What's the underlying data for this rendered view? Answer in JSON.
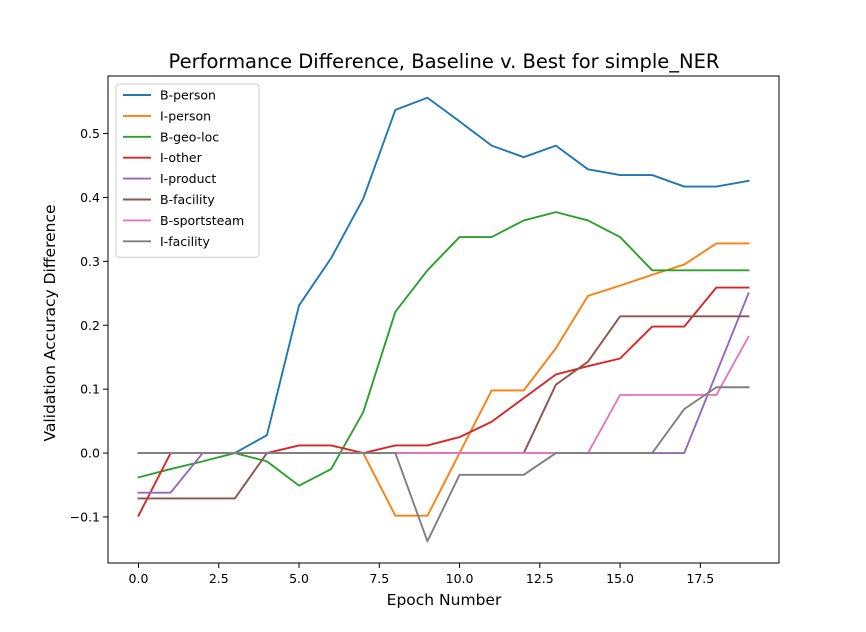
{
  "chart_data": {
    "type": "line",
    "title": "Performance Difference, Baseline v. Best for simple_NER",
    "xlabel": "Epoch Number",
    "ylabel": "Validation Accuracy Difference",
    "xlim": [
      -0.95,
      19.95
    ],
    "ylim": [
      -0.172,
      0.59
    ],
    "xticks": [
      0.0,
      2.5,
      5.0,
      7.5,
      10.0,
      12.5,
      15.0,
      17.5
    ],
    "xtick_labels": [
      "0.0",
      "2.5",
      "5.0",
      "7.5",
      "10.0",
      "12.5",
      "15.0",
      "17.5"
    ],
    "yticks": [
      -0.1,
      0.0,
      0.1,
      0.2,
      0.3,
      0.4,
      0.5
    ],
    "ytick_labels": [
      "−0.1",
      "0.0",
      "0.1",
      "0.2",
      "0.3",
      "0.4",
      "0.5"
    ],
    "grid": false,
    "legend_position": "top-left",
    "x": [
      0,
      1,
      2,
      3,
      4,
      5,
      6,
      7,
      8,
      9,
      10,
      11,
      12,
      13,
      14,
      15,
      16,
      17,
      18,
      19
    ],
    "series": [
      {
        "name": "B-person",
        "color": "#1f77b4",
        "values": [
          0.0,
          0.0,
          0.0,
          0.0,
          0.028,
          0.231,
          0.305,
          0.398,
          0.537,
          0.556,
          0.519,
          0.481,
          0.463,
          0.481,
          0.444,
          0.435,
          0.435,
          0.417,
          0.417,
          0.426
        ]
      },
      {
        "name": "I-person",
        "color": "#ff7f0e",
        "values": [
          0.0,
          0.0,
          0.0,
          0.0,
          0.0,
          0.0,
          0.0,
          0.0,
          -0.098,
          -0.098,
          0.0,
          0.098,
          0.098,
          0.164,
          0.246,
          0.262,
          0.279,
          0.295,
          0.328,
          0.328
        ]
      },
      {
        "name": "B-geo-loc",
        "color": "#2ca02c",
        "values": [
          -0.038,
          -0.025,
          -0.013,
          0.0,
          -0.013,
          -0.051,
          -0.025,
          0.064,
          0.221,
          0.286,
          0.338,
          0.338,
          0.364,
          0.377,
          0.364,
          0.338,
          0.286,
          0.286,
          0.286,
          0.286
        ]
      },
      {
        "name": "I-other",
        "color": "#d62728",
        "values": [
          -0.098,
          0.0,
          0.0,
          0.0,
          0.0,
          0.012,
          0.012,
          0.0,
          0.012,
          0.012,
          0.025,
          0.049,
          0.086,
          0.123,
          0.136,
          0.148,
          0.198,
          0.198,
          0.259,
          0.259
        ]
      },
      {
        "name": "I-product",
        "color": "#9467bd",
        "values": [
          -0.062,
          -0.062,
          0.0,
          0.0,
          0.0,
          0.0,
          0.0,
          0.0,
          0.0,
          0.0,
          0.0,
          0.0,
          0.0,
          0.0,
          0.0,
          0.0,
          0.0,
          0.0,
          0.125,
          0.25
        ]
      },
      {
        "name": "B-facility",
        "color": "#8c564b",
        "values": [
          -0.071,
          -0.071,
          -0.071,
          -0.071,
          0.0,
          0.0,
          0.0,
          0.0,
          0.0,
          0.0,
          0.0,
          0.0,
          0.0,
          0.107,
          0.143,
          0.214,
          0.214,
          0.214,
          0.214,
          0.214
        ]
      },
      {
        "name": "B-sportsteam",
        "color": "#e377c2",
        "values": [
          0.0,
          0.0,
          0.0,
          0.0,
          0.0,
          0.0,
          0.0,
          0.0,
          0.0,
          0.0,
          0.0,
          0.0,
          0.0,
          0.0,
          0.0,
          0.091,
          0.091,
          0.091,
          0.091,
          0.182
        ]
      },
      {
        "name": "I-facility",
        "color": "#7f7f7f",
        "values": [
          0.0,
          0.0,
          0.0,
          0.0,
          0.0,
          0.0,
          0.0,
          0.0,
          0.0,
          -0.138,
          -0.034,
          -0.034,
          -0.034,
          0.0,
          0.0,
          0.0,
          0.0,
          0.069,
          0.103,
          0.103
        ]
      }
    ]
  }
}
